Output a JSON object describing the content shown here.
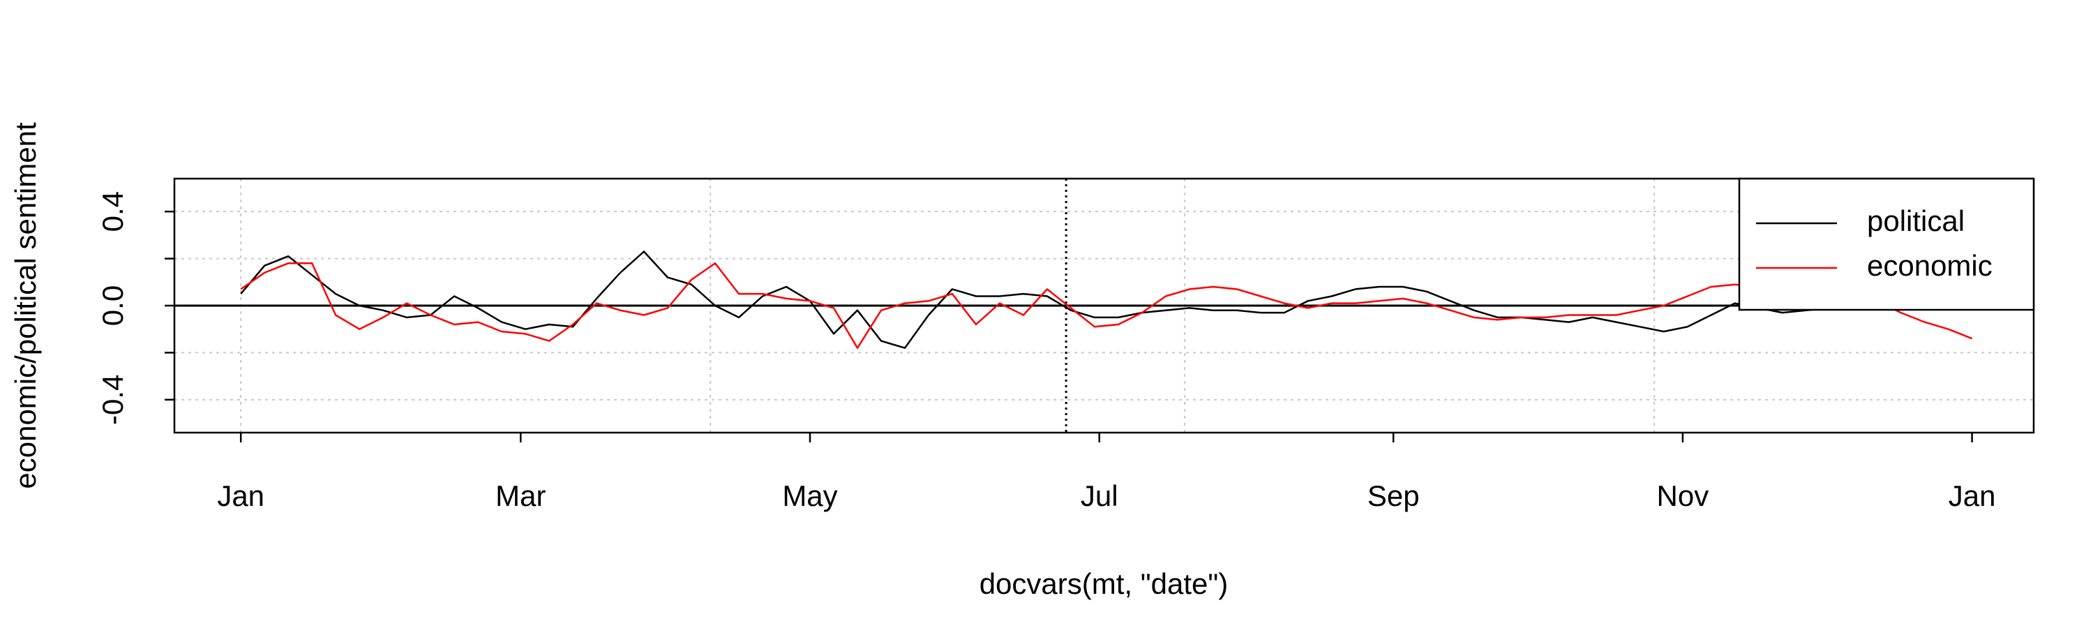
{
  "chart_data": {
    "type": "line",
    "xlabel": "docvars(mt, \"date\")",
    "ylabel": "economic/political sentiment",
    "x": [
      0,
      5,
      10,
      15,
      20,
      25,
      30,
      35,
      40,
      45,
      50,
      55,
      60,
      65,
      70,
      75,
      80,
      85,
      90,
      95,
      100,
      105,
      110,
      115,
      120,
      125,
      130,
      135,
      140,
      145,
      150,
      155,
      160,
      165,
      170,
      175,
      180,
      185,
      190,
      195,
      200,
      205,
      210,
      215,
      220,
      225,
      230,
      235,
      240,
      245,
      250,
      255,
      260,
      265,
      270,
      275,
      280,
      285,
      290,
      295,
      300,
      305,
      310,
      315,
      320,
      325,
      330,
      335,
      340,
      345,
      350,
      355,
      360,
      365
    ],
    "series": [
      {
        "name": "political",
        "color": "#000000",
        "values": [
          0.05,
          0.17,
          0.21,
          0.13,
          0.05,
          0.0,
          -0.02,
          -0.05,
          -0.04,
          0.04,
          -0.01,
          -0.07,
          -0.1,
          -0.08,
          -0.09,
          0.03,
          0.14,
          0.23,
          0.12,
          0.09,
          0.0,
          -0.05,
          0.04,
          0.08,
          0.02,
          -0.12,
          -0.02,
          -0.15,
          -0.18,
          -0.04,
          0.07,
          0.04,
          0.04,
          0.05,
          0.04,
          -0.02,
          -0.05,
          -0.05,
          -0.03,
          -0.02,
          -0.01,
          -0.02,
          -0.02,
          -0.03,
          -0.03,
          0.02,
          0.04,
          0.07,
          0.08,
          0.08,
          0.06,
          0.02,
          -0.02,
          -0.05,
          -0.05,
          -0.06,
          -0.07,
          -0.05,
          -0.07,
          -0.09,
          -0.11,
          -0.09,
          -0.04,
          0.01,
          -0.01,
          -0.03,
          -0.02,
          -0.01,
          -0.01,
          -0.01,
          -0.01,
          -0.01,
          -0.01,
          -0.01
        ]
      },
      {
        "name": "economic",
        "color": "#ff0000",
        "values": [
          0.07,
          0.14,
          0.18,
          0.18,
          -0.04,
          -0.1,
          -0.05,
          0.01,
          -0.04,
          -0.08,
          -0.07,
          -0.11,
          -0.12,
          -0.15,
          -0.08,
          0.01,
          -0.02,
          -0.04,
          -0.01,
          0.11,
          0.18,
          0.05,
          0.05,
          0.03,
          0.02,
          -0.01,
          -0.18,
          -0.02,
          0.01,
          0.02,
          0.05,
          -0.08,
          0.01,
          -0.04,
          0.07,
          -0.01,
          -0.09,
          -0.08,
          -0.03,
          0.04,
          0.07,
          0.08,
          0.07,
          0.04,
          0.01,
          -0.01,
          0.01,
          0.01,
          0.02,
          0.03,
          0.01,
          -0.02,
          -0.05,
          -0.06,
          -0.05,
          -0.05,
          -0.04,
          -0.04,
          -0.04,
          -0.02,
          0.0,
          0.04,
          0.08,
          0.09,
          0.08,
          0.08,
          0.08,
          0.08,
          0.06,
          0.02,
          -0.03,
          -0.07,
          -0.1,
          -0.14
        ]
      }
    ],
    "xlim": [
      -14,
      378
    ],
    "xticks": [
      {
        "value": 0,
        "label": "Jan"
      },
      {
        "value": 59,
        "label": "Mar"
      },
      {
        "value": 120,
        "label": "May"
      },
      {
        "value": 181,
        "label": "Jul"
      },
      {
        "value": 243,
        "label": "Sep"
      },
      {
        "value": 304,
        "label": "Nov"
      },
      {
        "value": 365,
        "label": "Jan"
      }
    ],
    "xgrid": [
      0,
      99,
      199,
      298
    ],
    "ylim": [
      -0.54,
      0.54
    ],
    "yticks": [
      -0.4,
      {
        "value": 0,
        "label": "0.0"
      },
      0.4
    ],
    "yminor": [
      -0.2,
      0.2
    ],
    "hline": 0,
    "vline": 174,
    "grid": true,
    "legend": "topright"
  }
}
